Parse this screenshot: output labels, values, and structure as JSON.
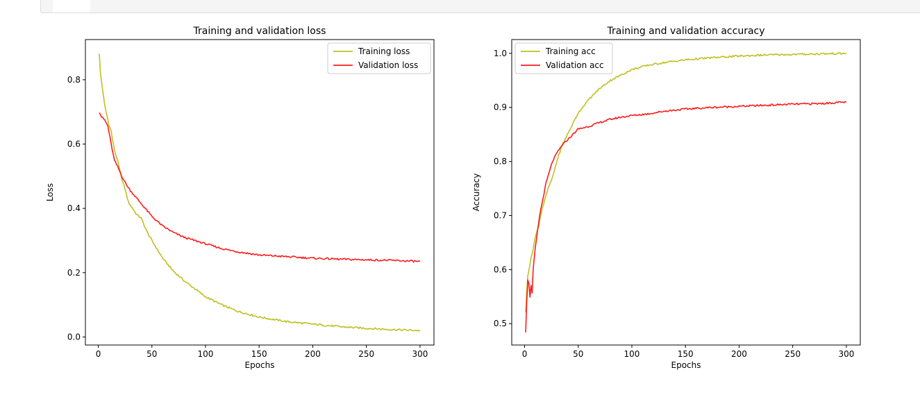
{
  "chart_data": [
    {
      "type": "line",
      "title": "Training and validation loss",
      "xlabel": "Epochs",
      "ylabel": "Loss",
      "xlim": [
        -12,
        313
      ],
      "ylim": [
        -0.025,
        0.925
      ],
      "xticks": [
        0,
        50,
        100,
        150,
        200,
        250,
        300
      ],
      "yticks": [
        0.0,
        0.2,
        0.4,
        0.6,
        0.8
      ],
      "yticklabels": [
        "0.0",
        "0.2",
        "0.4",
        "0.6",
        "0.8"
      ],
      "legend": "top-right",
      "grid": false,
      "series": [
        {
          "name": "Training loss",
          "color": "#bfbf1f",
          "x": [
            1,
            2,
            4,
            6,
            8,
            10,
            12,
            14,
            16,
            18,
            20,
            22,
            25,
            28,
            32,
            36,
            40,
            45,
            50,
            60,
            70,
            80,
            90,
            100,
            115,
            130,
            150,
            175,
            200,
            225,
            250,
            275,
            300
          ],
          "y": [
            0.88,
            0.82,
            0.77,
            0.72,
            0.69,
            0.66,
            0.64,
            0.6,
            0.57,
            0.55,
            0.52,
            0.49,
            0.46,
            0.42,
            0.4,
            0.38,
            0.37,
            0.33,
            0.3,
            0.245,
            0.205,
            0.175,
            0.15,
            0.125,
            0.1,
            0.08,
            0.062,
            0.048,
            0.04,
            0.032,
            0.027,
            0.023,
            0.02
          ]
        },
        {
          "name": "Validation loss",
          "color": "#ff1a1a",
          "x": [
            1,
            3,
            6,
            9,
            12,
            15,
            18,
            22,
            26,
            30,
            35,
            40,
            45,
            50,
            60,
            70,
            80,
            90,
            100,
            115,
            130,
            150,
            175,
            200,
            225,
            250,
            275,
            300
          ],
          "y": [
            0.7,
            0.685,
            0.675,
            0.655,
            0.6,
            0.55,
            0.53,
            0.5,
            0.475,
            0.455,
            0.435,
            0.415,
            0.395,
            0.375,
            0.345,
            0.325,
            0.31,
            0.3,
            0.29,
            0.275,
            0.265,
            0.255,
            0.25,
            0.245,
            0.242,
            0.24,
            0.238,
            0.235
          ]
        }
      ]
    },
    {
      "type": "line",
      "title": "Training and validation accuracy",
      "xlabel": "Epochs",
      "ylabel": "Accuracy",
      "xlim": [
        -12,
        313
      ],
      "ylim": [
        0.4605,
        1.0255
      ],
      "xticks": [
        0,
        50,
        100,
        150,
        200,
        250,
        300
      ],
      "yticks": [
        0.5,
        0.6,
        0.7,
        0.8,
        0.9,
        1.0
      ],
      "yticklabels": [
        "0.5",
        "0.6",
        "0.7",
        "0.8",
        "0.9",
        "1.0"
      ],
      "legend": "top-left",
      "grid": false,
      "series": [
        {
          "name": "Training acc",
          "color": "#bfbf1f",
          "x": [
            1,
            2,
            3,
            5,
            7,
            10,
            13,
            16,
            19,
            22,
            26,
            30,
            35,
            40,
            45,
            50,
            60,
            70,
            80,
            90,
            100,
            115,
            130,
            150,
            175,
            200,
            225,
            250,
            275,
            300
          ],
          "y": [
            0.52,
            0.56,
            0.59,
            0.61,
            0.63,
            0.66,
            0.68,
            0.71,
            0.73,
            0.75,
            0.77,
            0.8,
            0.83,
            0.85,
            0.87,
            0.89,
            0.915,
            0.935,
            0.95,
            0.96,
            0.97,
            0.978,
            0.983,
            0.988,
            0.992,
            0.995,
            0.997,
            0.998,
            0.999,
            1.0
          ]
        },
        {
          "name": "Validation acc",
          "color": "#ff1a1a",
          "x": [
            1,
            2,
            3,
            4,
            5,
            6,
            7,
            8,
            10,
            12,
            14,
            16,
            18,
            20,
            23,
            26,
            30,
            35,
            40,
            45,
            50,
            60,
            70,
            80,
            90,
            100,
            115,
            130,
            150,
            175,
            200,
            225,
            250,
            275,
            300
          ],
          "y": [
            0.485,
            0.54,
            0.58,
            0.575,
            0.55,
            0.57,
            0.555,
            0.6,
            0.64,
            0.67,
            0.7,
            0.72,
            0.74,
            0.76,
            0.78,
            0.8,
            0.815,
            0.83,
            0.84,
            0.85,
            0.86,
            0.865,
            0.872,
            0.878,
            0.882,
            0.885,
            0.888,
            0.893,
            0.897,
            0.9,
            0.902,
            0.904,
            0.906,
            0.907,
            0.91
          ]
        }
      ]
    }
  ]
}
